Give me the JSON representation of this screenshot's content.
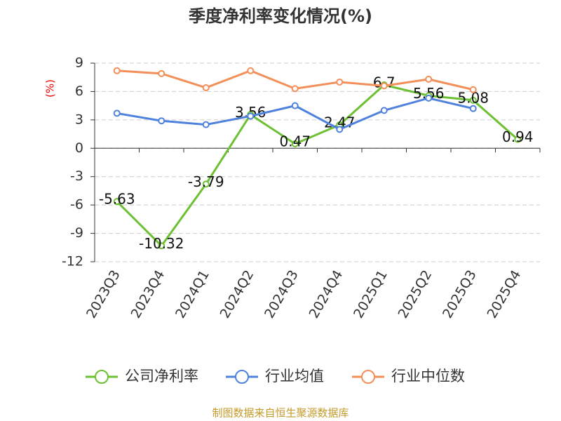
{
  "chart_data": {
    "type": "line",
    "title": "季度净利率变化情况(%)",
    "y_label": "(%)",
    "categories": [
      "2023Q3",
      "2023Q4",
      "2024Q1",
      "2024Q2",
      "2024Q3",
      "2024Q4",
      "2025Q1",
      "2025Q2",
      "2025Q3",
      "2025Q4"
    ],
    "series": [
      {
        "name": "公司净利率",
        "color": "#6cc032",
        "data_labels": true,
        "values": [
          -5.63,
          -10.32,
          -3.79,
          3.56,
          0.47,
          2.47,
          6.7,
          5.56,
          5.08,
          0.94
        ]
      },
      {
        "name": "行业均值",
        "color": "#4f82dc",
        "values": [
          3.7,
          2.9,
          2.5,
          3.4,
          4.5,
          2.0,
          4.0,
          5.3,
          4.2,
          null
        ]
      },
      {
        "name": "行业中位数",
        "color": "#f38f58",
        "values": [
          8.2,
          7.9,
          6.4,
          8.2,
          6.3,
          7.0,
          6.6,
          7.3,
          6.2,
          null
        ]
      }
    ],
    "ylim": [
      -12,
      9
    ],
    "yticks": [
      -12,
      -9,
      -6,
      -3,
      0,
      3,
      6,
      9
    ],
    "grid": true,
    "source": "制图数据来自恒生聚源数据库"
  }
}
